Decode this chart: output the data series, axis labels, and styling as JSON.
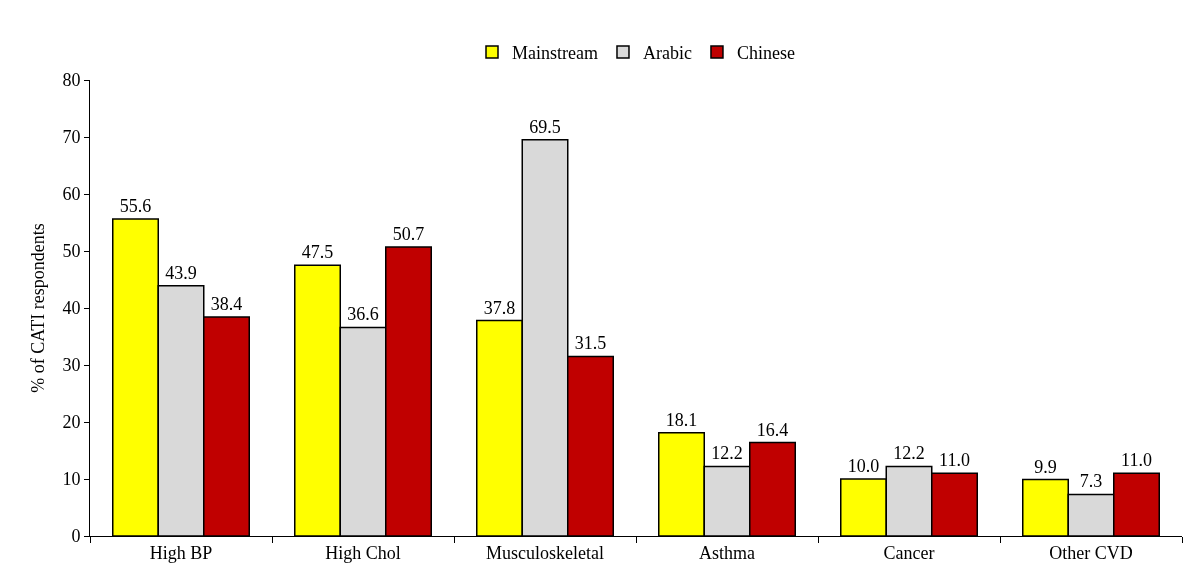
{
  "chart_data": {
    "type": "bar",
    "ylabel": "% of CATI respondents",
    "categories": [
      "High BP",
      "High Chol",
      "Musculoskeletal",
      "Asthma",
      "Cancer",
      "Other CVD"
    ],
    "series": [
      {
        "name": "Mainstream",
        "color": "#ffff00",
        "values": [
          55.6,
          47.5,
          37.8,
          18.1,
          10.0,
          9.9
        ],
        "value_labels": [
          "55.6",
          "47.5",
          "37.8",
          "18.1",
          "10.0",
          "9.9"
        ]
      },
      {
        "name": "Arabic",
        "color": "#d9d9d9",
        "values": [
          43.9,
          36.6,
          69.5,
          12.2,
          12.2,
          7.3
        ],
        "value_labels": [
          "43.9",
          "36.6",
          "69.5",
          "12.2",
          "12.2",
          "7.3"
        ]
      },
      {
        "name": "Chinese",
        "color": "#c00000",
        "values": [
          38.4,
          50.7,
          31.5,
          16.4,
          11.0,
          11.0
        ],
        "value_labels": [
          "38.4",
          "50.7",
          "31.5",
          "16.4",
          "11.0",
          "11.0"
        ]
      }
    ],
    "ylim": [
      0,
      80
    ],
    "yticks": [
      0,
      10,
      20,
      30,
      40,
      50,
      60,
      70,
      80
    ],
    "grid": false,
    "legend": "top"
  }
}
